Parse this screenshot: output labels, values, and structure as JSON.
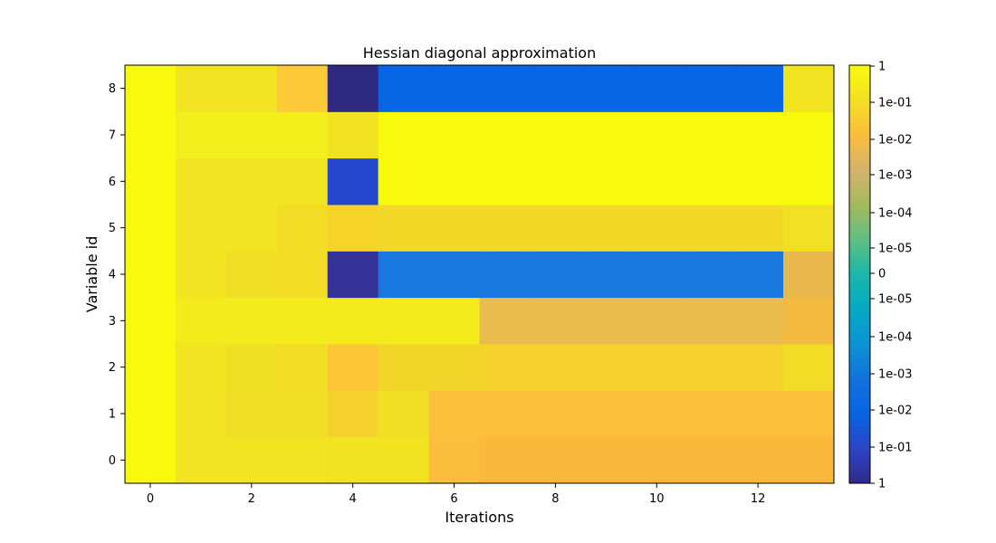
{
  "chart_data": {
    "type": "heatmap",
    "title": "Hessian diagonal approximation",
    "xlabel": "Iterations",
    "ylabel": "Variable id",
    "x": [
      0,
      1,
      2,
      3,
      4,
      5,
      6,
      7,
      8,
      9,
      10,
      11,
      12,
      13
    ],
    "y": [
      0,
      1,
      2,
      3,
      4,
      5,
      6,
      7,
      8
    ],
    "x_tick_labels": [
      "0",
      "2",
      "4",
      "6",
      "8",
      "10",
      "12"
    ],
    "y_tick_labels": [
      "0",
      "1",
      "2",
      "3",
      "4",
      "5",
      "6",
      "7",
      "8"
    ],
    "colorbar": {
      "scale": "symmetric-log",
      "tick_labels": [
        "1",
        "1e-01",
        "1e-02",
        "1e-03",
        "1e-04",
        "1e-05",
        "0",
        "1e-05",
        "1e-04",
        "1e-03",
        "1e-02",
        "1e-01",
        "1"
      ],
      "colors": [
        "#f9fa0c",
        "#f3e024",
        "#fdbd3d",
        "#d4b36b",
        "#a5b95c",
        "#5fbf82",
        "#1ab7a9",
        "#05aac4",
        "#0c93d6",
        "#1272dd",
        "#0765e3",
        "#2c45c7",
        "#2e2a8a"
      ]
    },
    "grid": false,
    "rows": [
      {
        "variable": "0",
        "cells": [
          "#f8fa0d",
          "#f2e421",
          "#f2e421",
          "#f2e421",
          "#f2e321",
          "#f2e321",
          "#fcbd3c",
          "#fcb83a",
          "#fcb83a",
          "#fcb83a",
          "#fcb83a",
          "#fcb83a",
          "#fcb83a",
          "#fcb83a"
        ]
      },
      {
        "variable": "1",
        "cells": [
          "#f8fa0d",
          "#f2e421",
          "#f0df26",
          "#f0df26",
          "#f5d22b",
          "#f1df25",
          "#fcbf3b",
          "#fcbf3b",
          "#fcbf3b",
          "#fcbf3b",
          "#fcbf3b",
          "#fcbf3b",
          "#fcbf3b",
          "#fcbf3b"
        ]
      },
      {
        "variable": "2",
        "cells": [
          "#f8fa0d",
          "#f2e421",
          "#f0e023",
          "#f3dc26",
          "#fcc637",
          "#f3d52a",
          "#f3d52a",
          "#f5d22b",
          "#f5d22b",
          "#f5d22b",
          "#f5d22b",
          "#f5d22b",
          "#f5d22b",
          "#f2dc26"
        ]
      },
      {
        "variable": "3",
        "cells": [
          "#f8fa0d",
          "#f3eb1b",
          "#f3eb1b",
          "#f3eb1b",
          "#f3eb1b",
          "#f3eb1b",
          "#f3eb1b",
          "#e8bd4d",
          "#e8bd4d",
          "#e8bd4d",
          "#e8bd4d",
          "#e8bd4d",
          "#e8bd4d",
          "#f4bb40"
        ]
      },
      {
        "variable": "4",
        "cells": [
          "#f8fa0d",
          "#f2e421",
          "#f0df26",
          "#f3dc26",
          "#353397",
          "#1978de",
          "#1978de",
          "#1978de",
          "#1978de",
          "#1978de",
          "#1978de",
          "#1978de",
          "#1978de",
          "#e8b84c"
        ]
      },
      {
        "variable": "5",
        "cells": [
          "#f8fa0d",
          "#f2e421",
          "#f2e421",
          "#f3dc26",
          "#f6d528",
          "#f3d828",
          "#f3d828",
          "#f3d828",
          "#f3d828",
          "#f3d828",
          "#f3d828",
          "#f3d828",
          "#f3d828",
          "#f2e122"
        ]
      },
      {
        "variable": "6",
        "cells": [
          "#f8fa0d",
          "#f2e421",
          "#f2e421",
          "#f2e421",
          "#2348cd",
          "#f8fa0d",
          "#f8fa0d",
          "#f8fa0d",
          "#f8fa0d",
          "#f8fa0d",
          "#f8fa0d",
          "#f8fa0d",
          "#f8fa0d",
          "#f8fa0d"
        ]
      },
      {
        "variable": "7",
        "cells": [
          "#f8fa0d",
          "#f2ef1c",
          "#f2ef1c",
          "#f2ef1c",
          "#f3e220",
          "#f8fa0d",
          "#f8fa0d",
          "#f8fa0d",
          "#f8fa0d",
          "#f8fa0d",
          "#f8fa0d",
          "#f8fa0d",
          "#f8fa0d",
          "#f8fa0d"
        ]
      },
      {
        "variable": "8",
        "cells": [
          "#f8fa0d",
          "#f2e421",
          "#f2e421",
          "#fcc938",
          "#2e2a82",
          "#0565e2",
          "#0565e2",
          "#0565e2",
          "#0565e2",
          "#0565e2",
          "#0565e2",
          "#0565e2",
          "#0565e2",
          "#f2e421"
        ]
      }
    ]
  }
}
